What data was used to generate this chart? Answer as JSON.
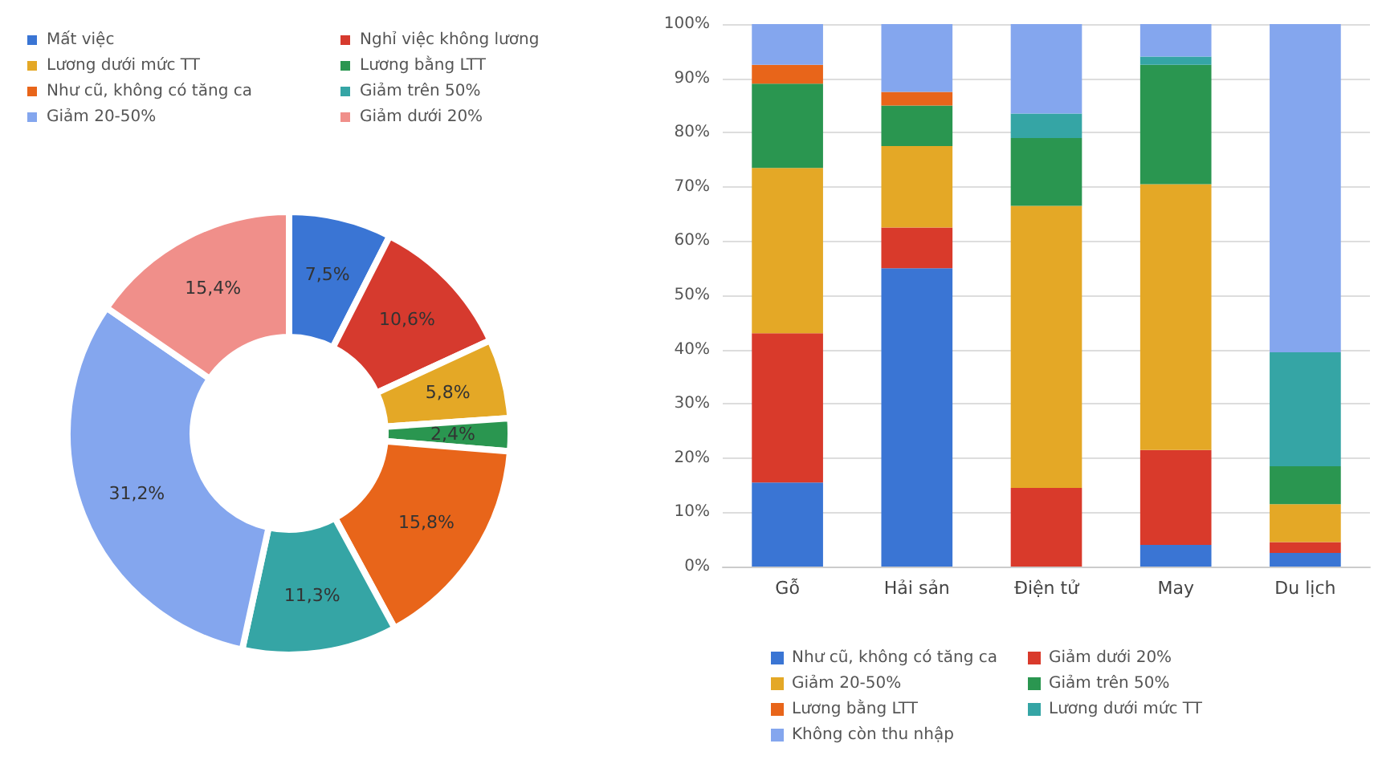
{
  "chart_data": [
    {
      "type": "donut",
      "categories": [
        "Mất việc",
        "Nghỉ việc không lương",
        "Lương dưới mức TT",
        "Lương bằng LTT",
        "Như cũ, không có tăng ca",
        "Giảm trên 50%",
        "Giảm 20-50%",
        "Giảm dưới 20%"
      ],
      "values": [
        7.5,
        10.6,
        5.8,
        2.4,
        15.8,
        11.3,
        31.2,
        15.4
      ],
      "value_labels": [
        "7,5%",
        "10,6%",
        "5,8%",
        "2,4%",
        "15,8%",
        "11,3%",
        "31,2%",
        "15,4%"
      ],
      "colors": [
        "#3a75d4",
        "#d63a2e",
        "#e4a826",
        "#2a9650",
        "#e8651a",
        "#35a5a5",
        "#84a6ee",
        "#f08f8a"
      ],
      "legend": "top"
    },
    {
      "type": "bar",
      "stacked": true,
      "categories": [
        "Gỗ",
        "Hải sản",
        "Điện tử",
        "May",
        "Du lịch"
      ],
      "series": [
        {
          "name": "Như cũ, không có tăng ca",
          "color": "#3a75d4",
          "values": [
            15.5,
            55,
            0,
            4,
            2.5
          ]
        },
        {
          "name": "Giảm dưới 20%",
          "color": "#d93a2b",
          "values": [
            27.5,
            7.5,
            14.5,
            17.5,
            2
          ]
        },
        {
          "name": "Giảm 20-50%",
          "color": "#e4a826",
          "values": [
            30.5,
            15,
            52,
            49,
            7
          ]
        },
        {
          "name": "Giảm trên 50%",
          "color": "#2a9650",
          "values": [
            15.5,
            7.5,
            12.5,
            22,
            7
          ]
        },
        {
          "name": "Lương bằng LTT",
          "color": "#e8651a",
          "values": [
            3.5,
            2.5,
            0,
            0,
            0
          ]
        },
        {
          "name": "Lương dưới mức TT",
          "color": "#35a5a5",
          "values": [
            0,
            0,
            4.5,
            1.5,
            21
          ]
        },
        {
          "name": "Không còn thu nhập",
          "color": "#84a6ee",
          "values": [
            7.5,
            12.5,
            16.5,
            6,
            60.5
          ]
        }
      ],
      "ylim": [
        0,
        100
      ],
      "yticks": [
        {
          "value": 0,
          "label": "0%"
        },
        {
          "value": 10,
          "label": "10%"
        },
        {
          "value": 20,
          "label": "20%"
        },
        {
          "value": 30,
          "label": "30%"
        },
        {
          "value": 40,
          "label": "40%"
        },
        {
          "value": 50,
          "label": "50%"
        },
        {
          "value": 60,
          "label": "60%"
        },
        {
          "value": 70,
          "label": "70%"
        },
        {
          "value": 80,
          "label": "80%"
        },
        {
          "value": 90,
          "label": "90%"
        },
        {
          "value": 100,
          "label": "100%"
        }
      ],
      "grid": "y",
      "legend": "bottom"
    }
  ]
}
